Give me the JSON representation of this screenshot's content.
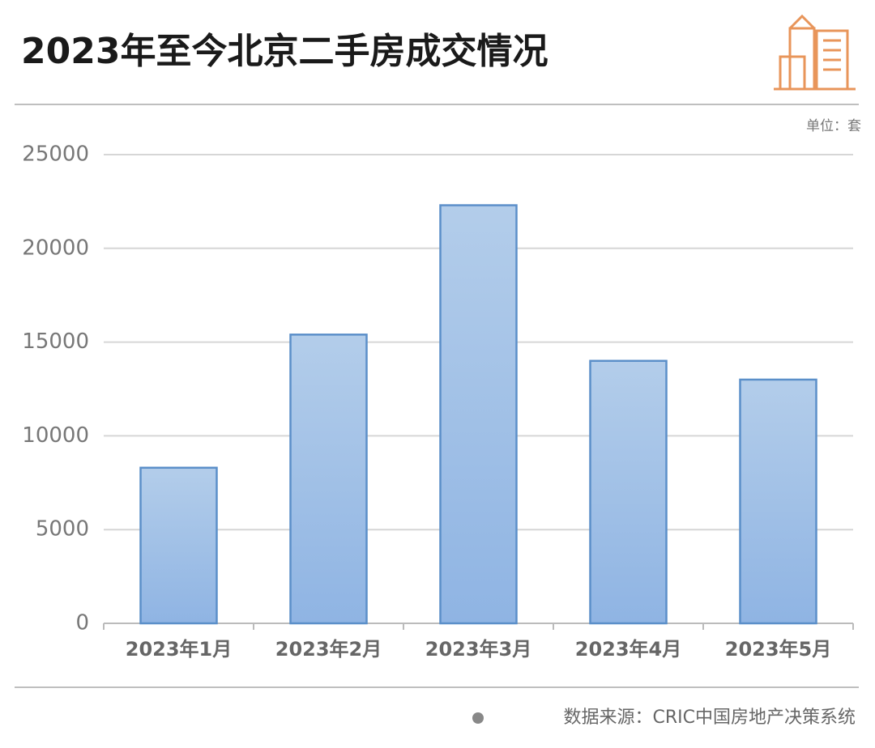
{
  "chart_data": {
    "type": "bar",
    "title": "2023年至今北京二手房成交情况",
    "unit_label": "单位：套",
    "source": "数据来源：CRIC中国房地产决策系统",
    "categories": [
      "2023年1月",
      "2023年2月",
      "2023年3月",
      "2023年4月",
      "2023年5月"
    ],
    "values": [
      8300,
      15400,
      22300,
      14000,
      13000
    ],
    "color": "#8fb4e3",
    "ylim": [
      0,
      25000
    ],
    "yticks": [
      0,
      5000,
      10000,
      15000,
      20000,
      25000
    ],
    "grid": true
  }
}
